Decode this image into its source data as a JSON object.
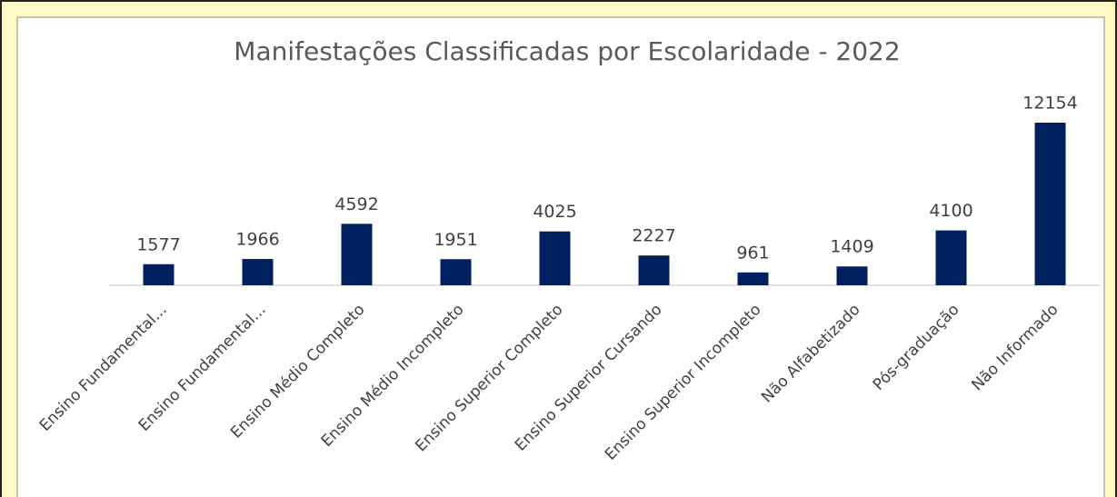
{
  "chart_data": {
    "type": "bar",
    "title": "Manifestações Classificadas por Escolaridade - 2022",
    "categories": [
      "Ensino Fundamental...",
      "Ensino Fundamental...",
      "Ensino Médio Completo",
      "Ensino Médio Incompleto",
      "Ensino Superior Completo",
      "Ensino Superior Cursando",
      "Ensino Superior Incompleto",
      "Não Alfabetizado",
      "Pós-graduação",
      "Não Informado"
    ],
    "values": [
      1577,
      1966,
      4592,
      1951,
      4025,
      2227,
      961,
      1409,
      4100,
      12154
    ],
    "color": "#002060"
  }
}
